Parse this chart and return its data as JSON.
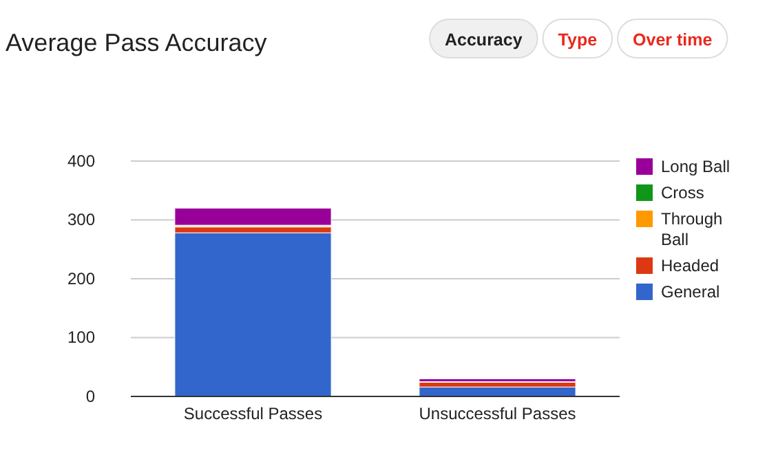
{
  "chart_data": {
    "type": "bar",
    "title": "Average Pass Accuracy",
    "annotations": [
      "Accuracy",
      "Type",
      "Over time"
    ],
    "categories": [
      "Successful Passes",
      "Unsuccessful Passes"
    ],
    "stacked": true,
    "series": [
      {
        "name": "General",
        "color": "#3366cc",
        "values": [
          278,
          16
        ]
      },
      {
        "name": "Headed",
        "color": "#dc3912",
        "values": [
          10,
          8
        ]
      },
      {
        "name": "Through Ball",
        "color": "#ff9900",
        "values": [
          2,
          1
        ]
      },
      {
        "name": "Cross",
        "color": "#109618",
        "values": [
          1,
          0
        ]
      },
      {
        "name": "Long Ball",
        "color": "#990099",
        "values": [
          29,
          5
        ]
      }
    ],
    "ylim": [
      0,
      400
    ],
    "yticks": [
      0,
      100,
      200,
      300,
      400
    ],
    "grid": "y",
    "legend": "right"
  }
}
